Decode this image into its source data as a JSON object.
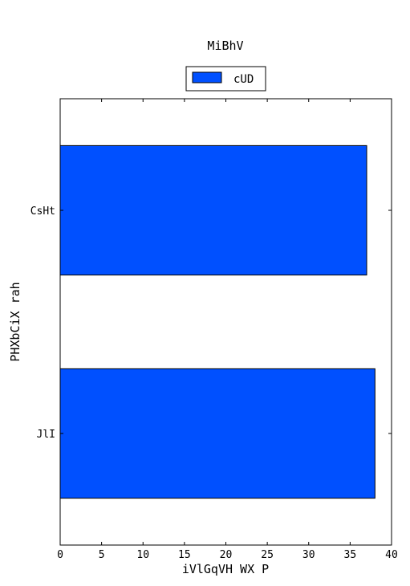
{
  "chart_data": {
    "type": "bar",
    "orientation": "horizontal",
    "title": "MiBhV",
    "xlabel": "iVlGqVH WX P",
    "ylabel": "PHXbCiX rah",
    "categories": [
      "CsHt",
      "JlI"
    ],
    "series": [
      {
        "name": "cUD",
        "values": [
          37,
          38
        ],
        "color": "#0050ff"
      }
    ],
    "xlim": [
      0,
      40
    ],
    "xticks": [
      "0",
      "5",
      "10",
      "15",
      "20",
      "25",
      "30",
      "35",
      "40"
    ],
    "grid": false,
    "legend_position": "top-center"
  }
}
